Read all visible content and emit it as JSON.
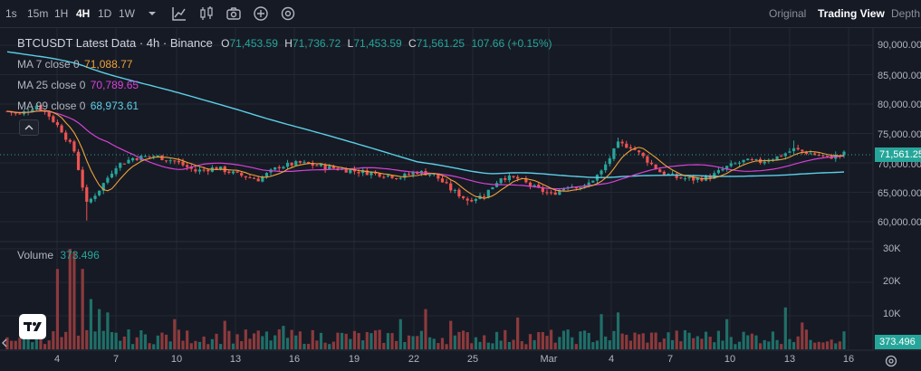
{
  "toolbar": {
    "timeframes": [
      "1s",
      "15m",
      "1H",
      "4H",
      "1D",
      "1W"
    ],
    "active_timeframe": "4H",
    "icons": [
      "chevron-down-icon",
      "line-tool-icon",
      "candles-icon",
      "camera-icon",
      "plus-circle-icon",
      "settings-gear-icon"
    ],
    "views": [
      "Original",
      "Trading View",
      "Depth"
    ],
    "active_view": "Trading View"
  },
  "legend": {
    "symbol": "BTCUSDT Latest Data · 4h · Binance",
    "open_label": "O",
    "open": "71,453.59",
    "high_label": "H",
    "high": "71,736.72",
    "low_label": "L",
    "low": "71,453.59",
    "close_label": "C",
    "close": "71,561.25",
    "change": "107.66 (+0.15%)",
    "ma7_label": "MA 7 close 0",
    "ma7_value": "71,088.77",
    "ma25_label": "MA 25 close 0",
    "ma25_value": "70,789.65",
    "ma99_label": "MA 99 close 0",
    "ma99_value": "68,973.61",
    "volume_label": "Volume",
    "volume_value": "373.496"
  },
  "axes": {
    "price_ticks": [
      "90,000.00",
      "85,000.00",
      "80,000.00",
      "75,000.00",
      "70,000.00",
      "65,000.00",
      "60,000.00"
    ],
    "current_price": "71,561.25",
    "volume_ticks": [
      "30K",
      "20K",
      "10K"
    ],
    "current_volume": "373.496",
    "date_ticks": [
      "4",
      "7",
      "10",
      "13",
      "16",
      "19",
      "22",
      "25",
      "Mar",
      "4",
      "7",
      "10",
      "13",
      "16"
    ]
  },
  "colors": {
    "up": "#26a69a",
    "down": "#ef5350",
    "ma7": "#f0a237",
    "ma25": "#d642d6",
    "ma99": "#5ccfe6",
    "background": "#161a25"
  },
  "chart_data": {
    "type": "candlestick",
    "title": "BTCUSDT Latest Data · 4h · Binance",
    "x_date_ticks": [
      "4",
      "7",
      "10",
      "13",
      "16",
      "19",
      "22",
      "25",
      "Mar",
      "4",
      "7",
      "10",
      "13",
      "16"
    ],
    "ylim": [
      58000,
      92000
    ],
    "price_path": [
      [
        78800,
        0
      ],
      [
        78200,
        3
      ],
      [
        79800,
        7
      ],
      [
        78000,
        10
      ],
      [
        75500,
        13
      ],
      [
        72000,
        16
      ],
      [
        63000,
        19
      ],
      [
        65500,
        22
      ],
      [
        69500,
        26
      ],
      [
        70800,
        30
      ],
      [
        71200,
        35
      ],
      [
        70300,
        40
      ],
      [
        68600,
        45
      ],
      [
        69200,
        50
      ],
      [
        68000,
        55
      ],
      [
        67200,
        60
      ],
      [
        69400,
        65
      ],
      [
        70000,
        70
      ],
      [
        69300,
        76
      ],
      [
        68700,
        82
      ],
      [
        68200,
        88
      ],
      [
        67600,
        94
      ],
      [
        68500,
        98
      ],
      [
        68000,
        102
      ],
      [
        65500,
        106
      ],
      [
        63700,
        110
      ],
      [
        64500,
        114
      ],
      [
        67600,
        118
      ],
      [
        67300,
        122
      ],
      [
        65800,
        126
      ],
      [
        64600,
        130
      ],
      [
        66200,
        134
      ],
      [
        65900,
        138
      ],
      [
        68500,
        142
      ],
      [
        73200,
        146
      ],
      [
        72800,
        149
      ],
      [
        71000,
        152
      ],
      [
        68500,
        156
      ],
      [
        67500,
        160
      ],
      [
        67200,
        164
      ],
      [
        67600,
        168
      ],
      [
        69300,
        172
      ],
      [
        70300,
        176
      ],
      [
        70200,
        180
      ],
      [
        71000,
        184
      ],
      [
        72300,
        188
      ],
      [
        71600,
        192
      ],
      [
        70900,
        196
      ],
      [
        71300,
        199
      ],
      [
        71561,
        200
      ]
    ],
    "ma_final": {
      "MA 7": 71088.77,
      "MA 25": 70789.65,
      "MA 99": 68973.61
    },
    "ma99_start": 89000,
    "volume_ylim": [
      0,
      32000
    ],
    "volume_spikes": [
      [
        12,
        24000
      ],
      [
        15,
        30000
      ],
      [
        16,
        29000
      ],
      [
        18,
        24000
      ],
      [
        20,
        15000
      ],
      [
        22,
        12000
      ],
      [
        24,
        11000
      ],
      [
        40,
        9000
      ],
      [
        52,
        8500
      ],
      [
        66,
        7000
      ],
      [
        94,
        9000
      ],
      [
        100,
        12000
      ],
      [
        106,
        8500
      ],
      [
        122,
        9500
      ],
      [
        142,
        10500
      ],
      [
        146,
        11000
      ],
      [
        172,
        9000
      ],
      [
        186,
        12500
      ],
      [
        190,
        8000
      ]
    ]
  }
}
